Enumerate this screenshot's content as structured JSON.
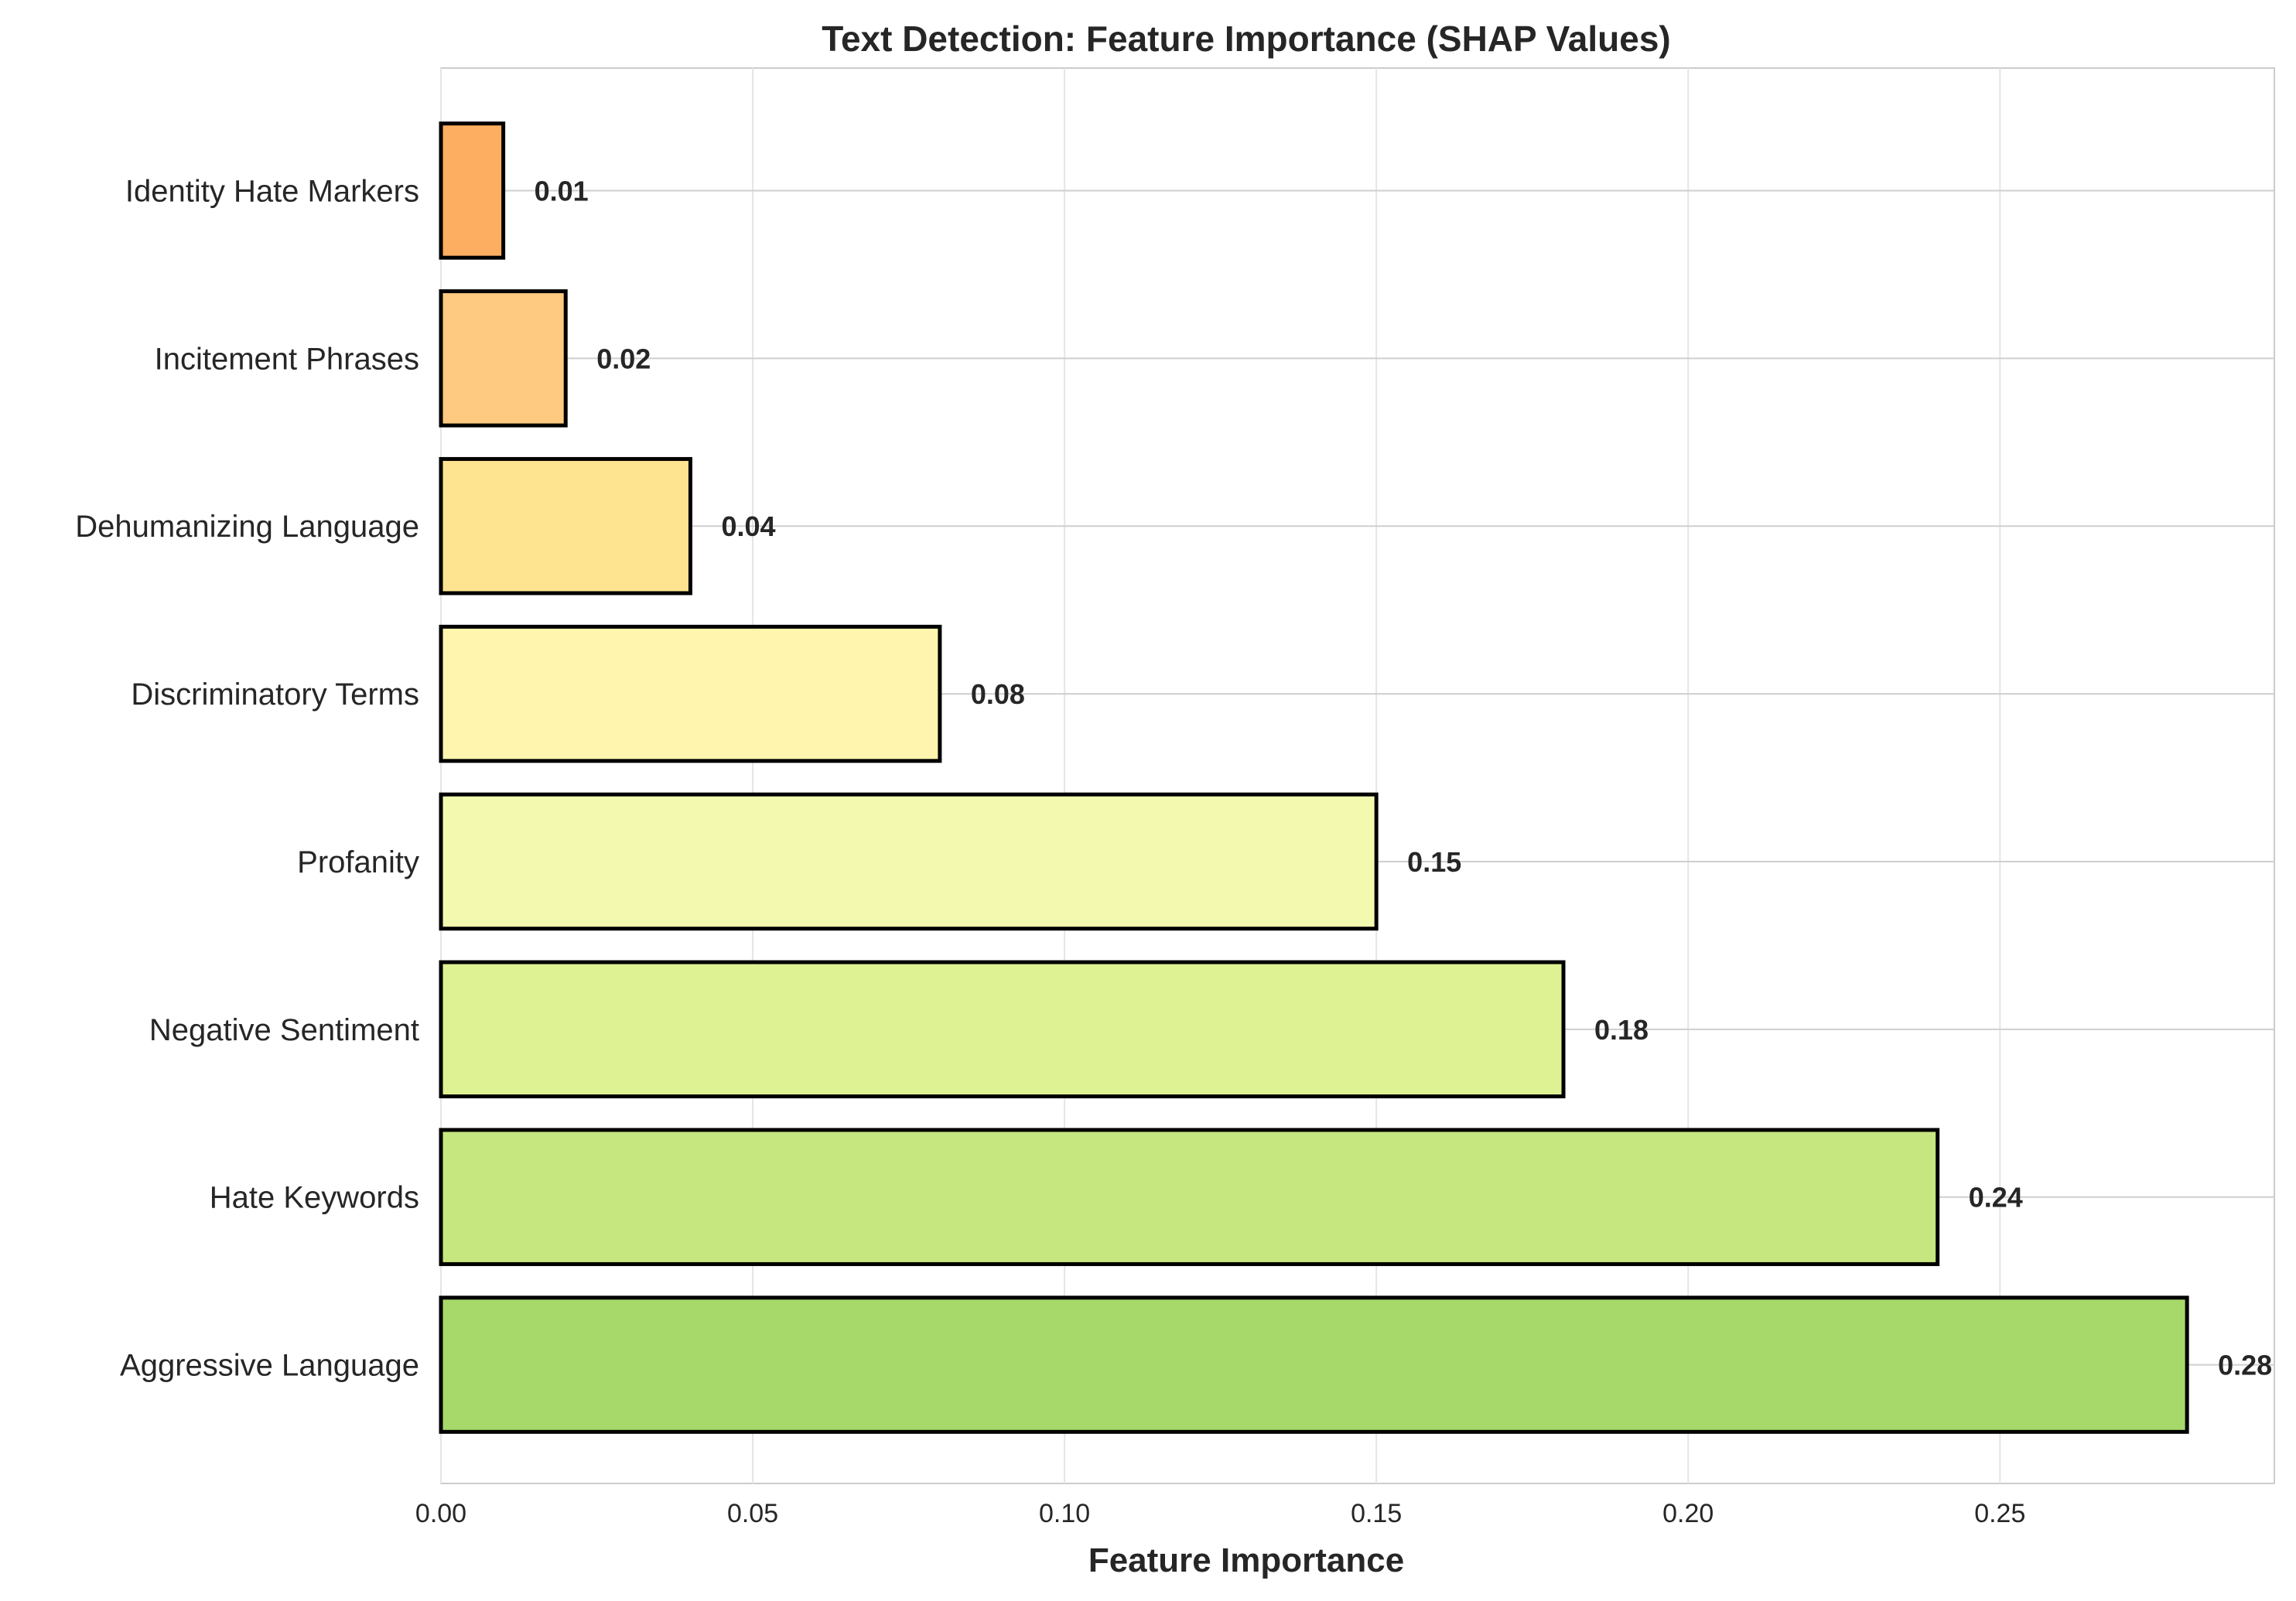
{
  "chart_data": {
    "type": "bar",
    "orientation": "horizontal",
    "title": "Text Detection: Feature Importance (SHAP Values)",
    "xlabel": "Feature Importance",
    "ylabel": "",
    "xlim": [
      0,
      0.294
    ],
    "xticks": [
      0.0,
      0.05,
      0.1,
      0.15,
      0.2,
      0.25
    ],
    "xtick_labels": [
      "0.00",
      "0.05",
      "0.10",
      "0.15",
      "0.20",
      "0.25"
    ],
    "grid": true,
    "categories": [
      "Identity Hate Markers",
      "Incitement Phrases",
      "Dehumanizing Language",
      "Discriminatory Terms",
      "Profanity",
      "Negative Sentiment",
      "Hate Keywords",
      "Aggressive Language"
    ],
    "values": [
      0.01,
      0.02,
      0.04,
      0.08,
      0.15,
      0.18,
      0.24,
      0.28
    ],
    "value_labels": [
      "0.01",
      "0.02",
      "0.04",
      "0.08",
      "0.15",
      "0.18",
      "0.24",
      "0.28"
    ],
    "colors": [
      "#fdae61",
      "#fec980",
      "#fee491",
      "#fff5ae",
      "#f3faaf",
      "#dff293",
      "#c6e77f",
      "#a6d96a"
    ],
    "edge_color": "#000000",
    "grid_color": "#e5e5e5",
    "text_color": "#262626"
  }
}
